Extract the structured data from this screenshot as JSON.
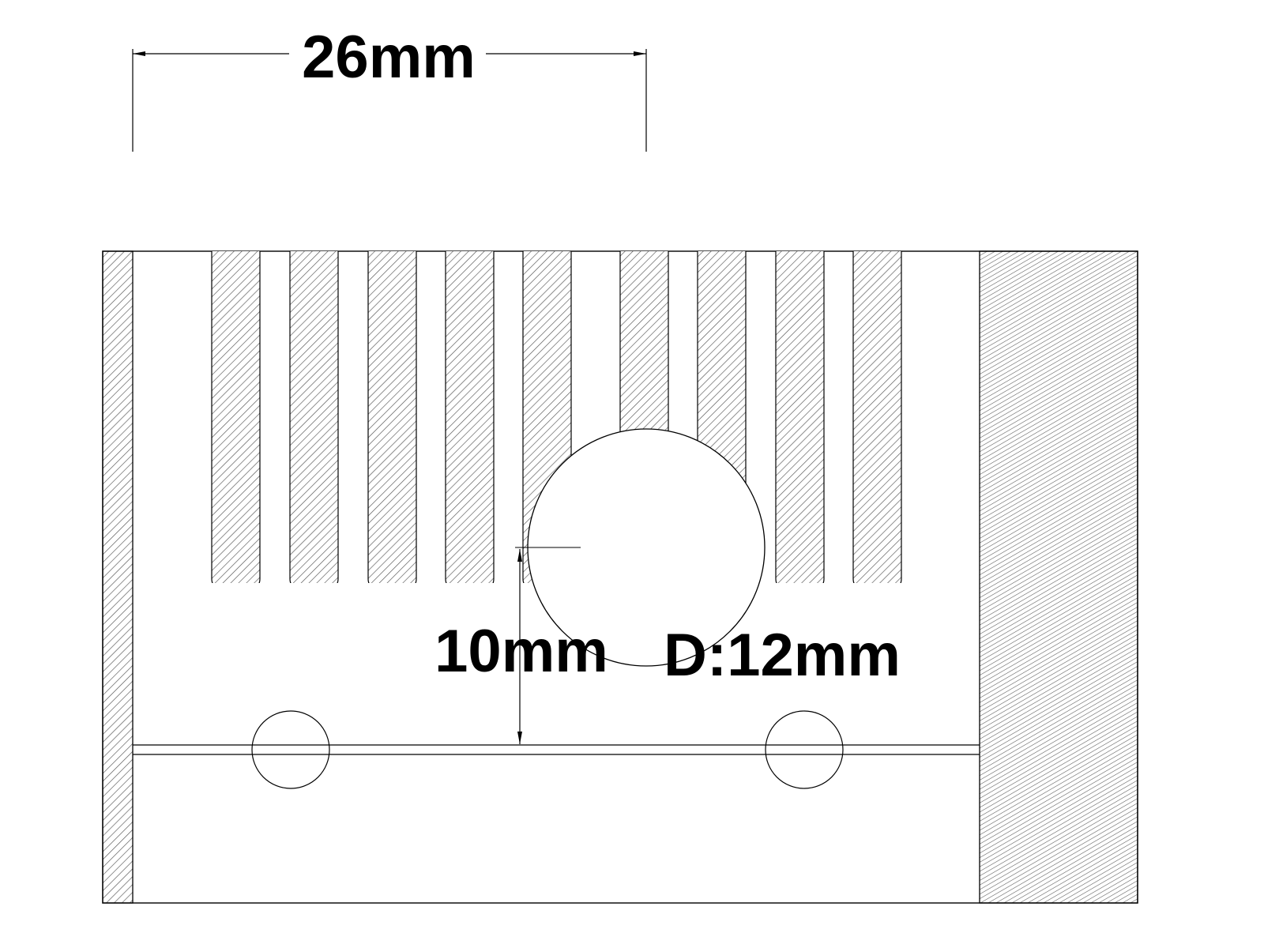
{
  "dimensions": {
    "width_label": "26mm",
    "height_label": "10mm",
    "diameter_label": "D:12mm"
  },
  "colors": {
    "line": "#000000",
    "hatch": "#444444",
    "background": "#ffffff"
  }
}
